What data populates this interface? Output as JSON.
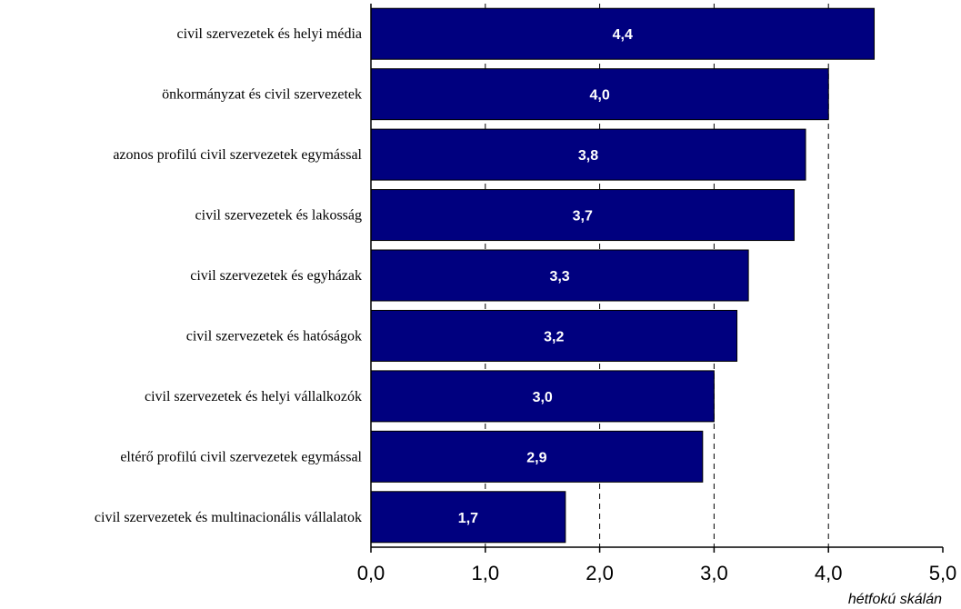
{
  "chart_data": {
    "type": "bar",
    "orientation": "horizontal",
    "categories": [
      "civil szervezetek és helyi média",
      "önkormányzat és civil szervezetek",
      "azonos profilú civil szervezetek egymással",
      "civil szervezetek és lakosság",
      "civil szervezetek és egyházak",
      "civil szervezetek és hatóságok",
      "civil szervezetek és helyi vállalkozók",
      "eltérő profilú civil szervezetek egymással",
      "civil szervezetek és multinacionális vállalatok"
    ],
    "values": [
      4.4,
      4.0,
      3.8,
      3.7,
      3.3,
      3.2,
      3.0,
      2.9,
      1.7
    ],
    "value_labels": [
      "4,4",
      "4,0",
      "3,8",
      "3,7",
      "3,3",
      "3,2",
      "3,0",
      "2,9",
      "1,7"
    ],
    "xlim": [
      0,
      5
    ],
    "xticks": [
      0,
      1,
      2,
      3,
      4,
      5
    ],
    "xtick_labels": [
      "0,0",
      "1,0",
      "2,0",
      "3,0",
      "4,0",
      "5,0"
    ],
    "xlabel": "hétfokú skálán",
    "title": "",
    "grid": "vertical dashed",
    "colors": {
      "bar": "#00007F",
      "bar_border": "#000000",
      "grid": "#000000"
    }
  }
}
